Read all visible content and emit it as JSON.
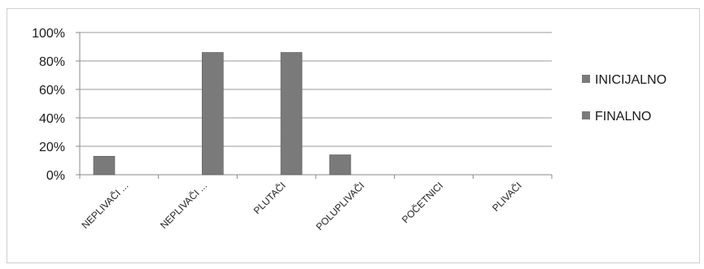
{
  "chart_data": {
    "type": "bar",
    "categories": [
      "NEPLIVAČI ...",
      "NEPLIVAČI ...",
      "PLUTAČI",
      "POLUPLIVAČI",
      "POČETNICI",
      "PLIVAČI"
    ],
    "series": [
      {
        "name": "INICIJALNO",
        "values": [
          13,
          0,
          0,
          14,
          0,
          0
        ],
        "color": "#7a7a7a"
      },
      {
        "name": "FINALNO",
        "values": [
          0,
          86,
          86,
          0,
          0,
          0
        ],
        "color": "#7a7a7a"
      }
    ],
    "ylim": [
      0,
      100
    ],
    "yticks": [
      "0%",
      "20%",
      "40%",
      "60%",
      "80%",
      "100%"
    ],
    "grid": true,
    "legend": "right"
  }
}
